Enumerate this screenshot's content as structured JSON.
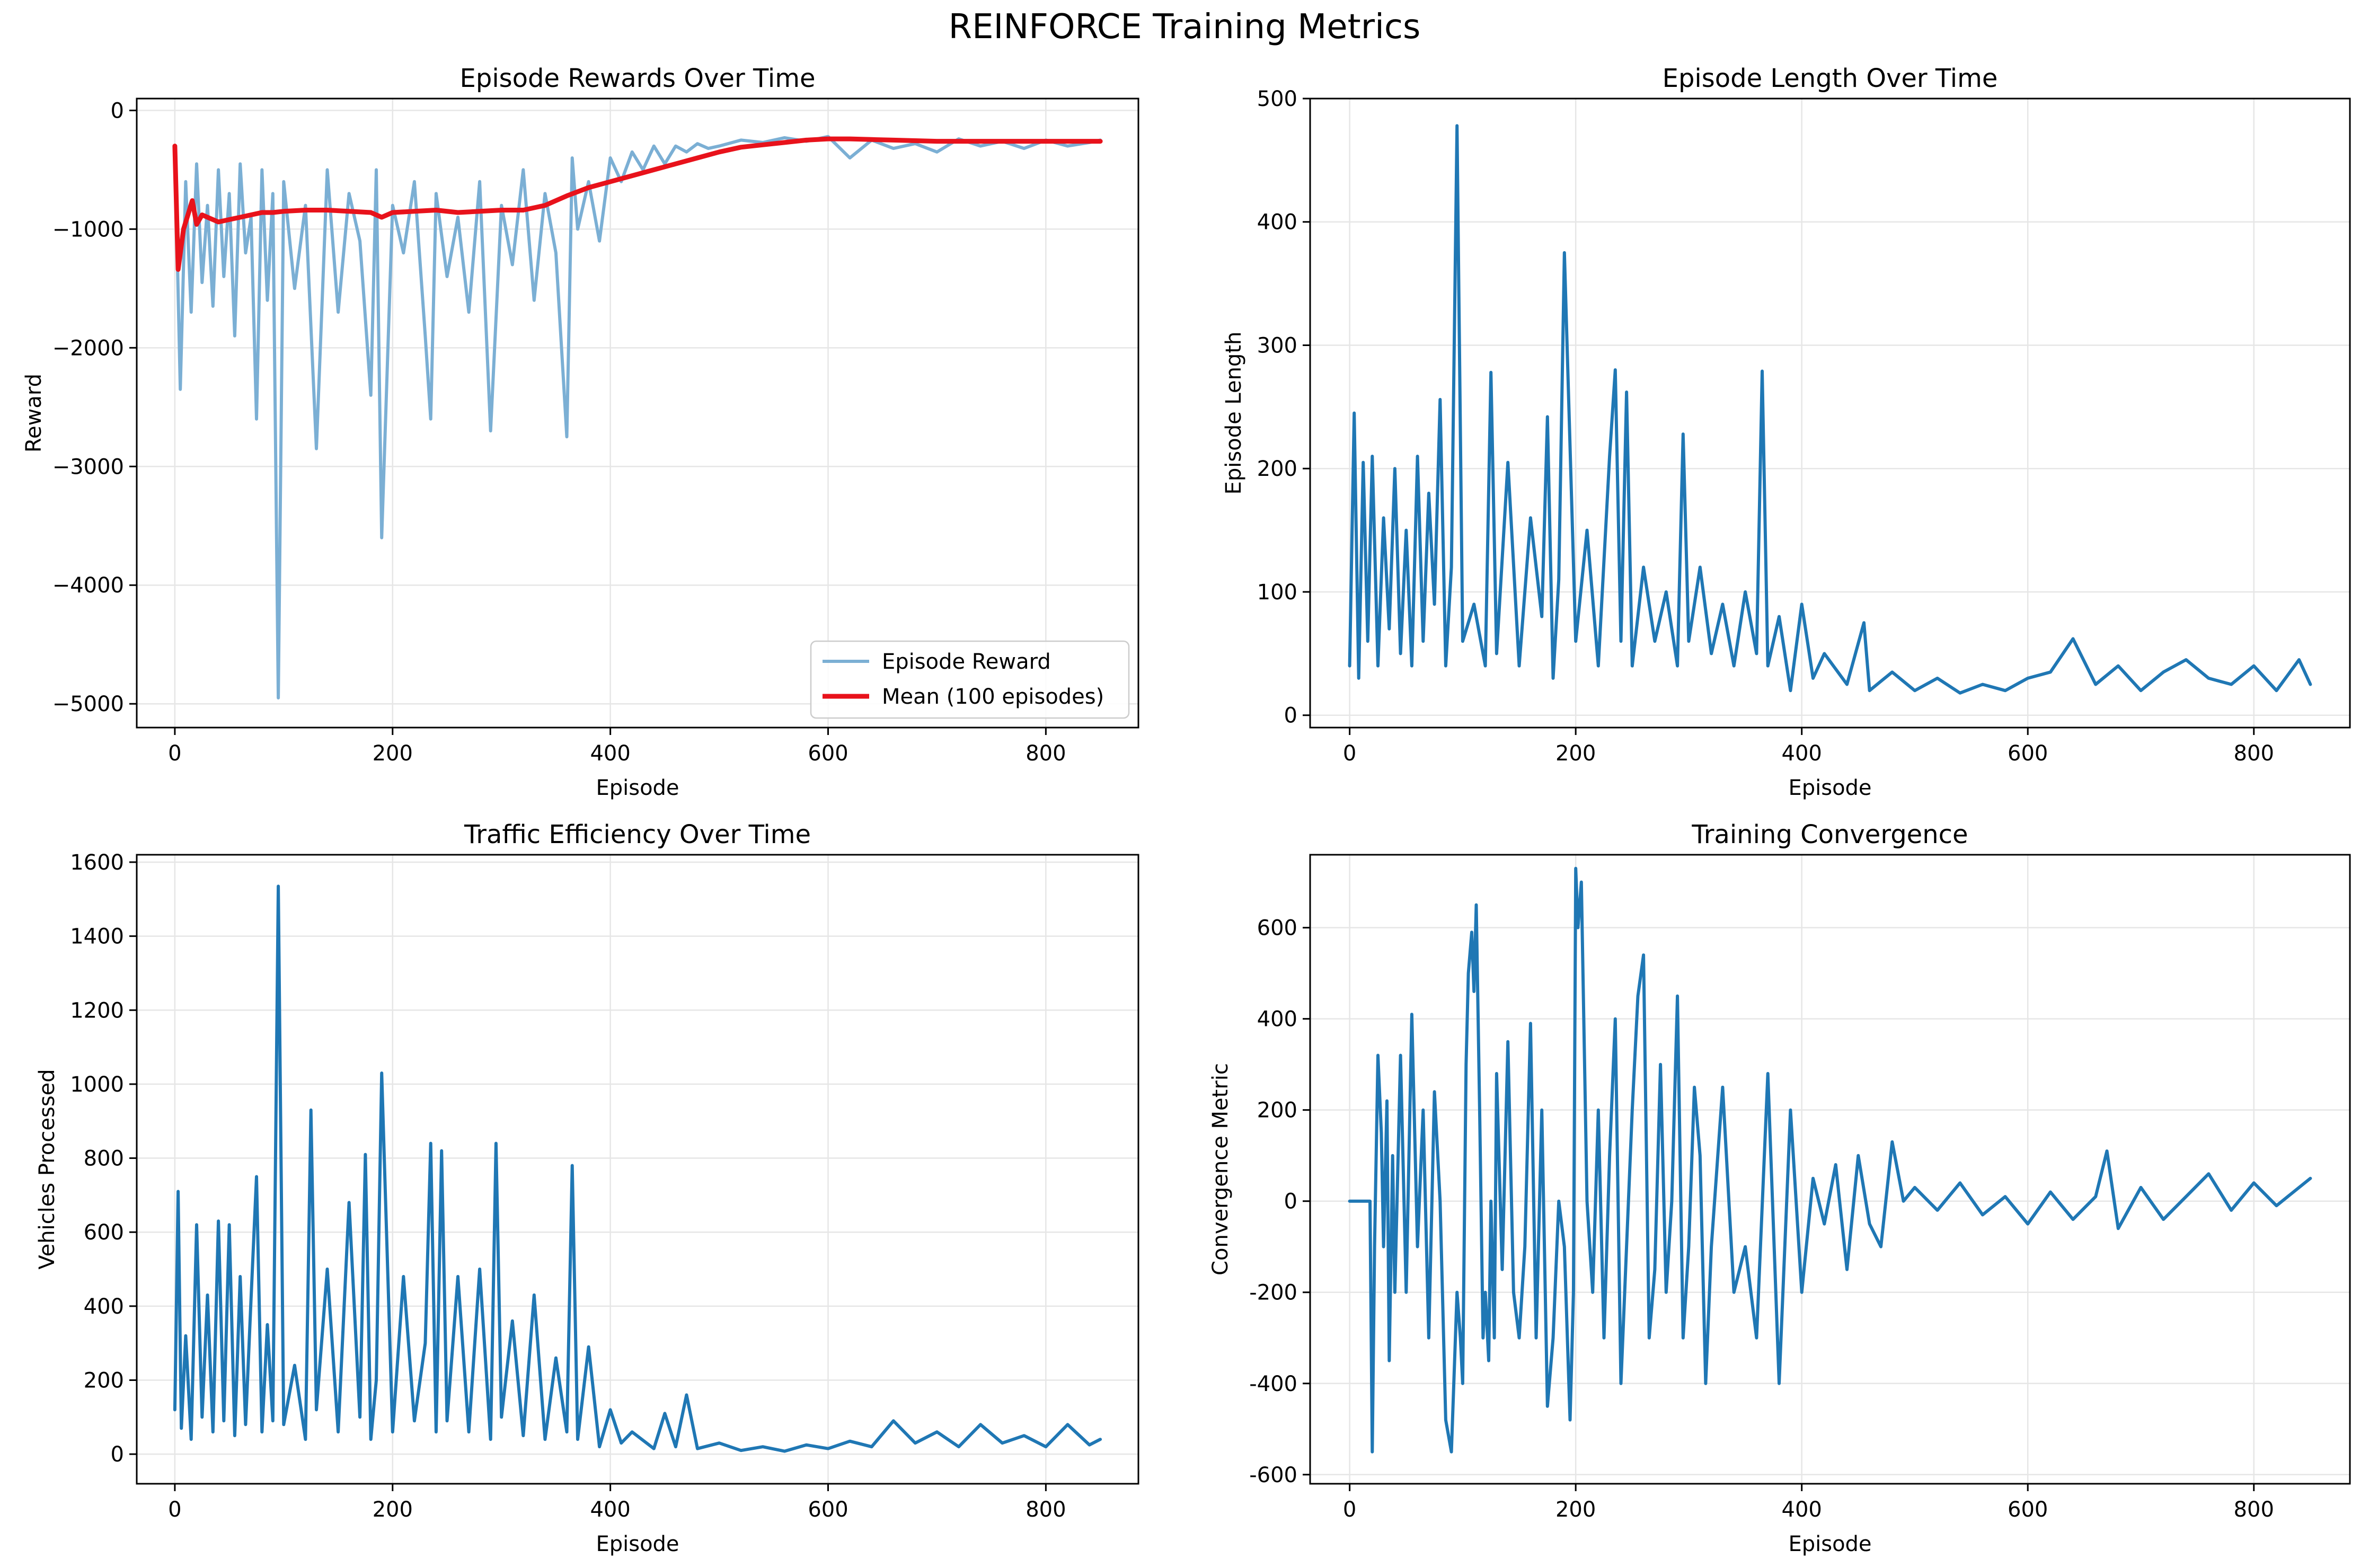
{
  "figure": {
    "suptitle": "REINFORCE Training Metrics"
  },
  "colors": {
    "blue": "#1f77b4",
    "light_blue": "#7bafd4",
    "red": "#e8121b",
    "grid": "#e6e6e6"
  },
  "chart_data": [
    {
      "type": "line",
      "title": "Episode Rewards Over Time",
      "xlabel": "Episode",
      "ylabel": "Reward",
      "xlim": [
        -35,
        885
      ],
      "ylim": [
        -5200,
        100
      ],
      "xticks": [
        0,
        200,
        400,
        600,
        800
      ],
      "yticks": [
        -5000,
        -4000,
        -3000,
        -2000,
        -1000,
        0
      ],
      "ytick_labels": [
        "−5000",
        "−4000",
        "−3000",
        "−2000",
        "−1000",
        "0"
      ],
      "grid": true,
      "legend": "lower-right",
      "series": [
        {
          "name": "Episode Reward",
          "color": "#7bafd4",
          "width": 6,
          "x": [
            0,
            5,
            10,
            15,
            20,
            25,
            30,
            35,
            40,
            45,
            50,
            55,
            60,
            65,
            70,
            75,
            80,
            85,
            90,
            95,
            100,
            110,
            120,
            130,
            140,
            150,
            160,
            170,
            180,
            185,
            190,
            200,
            210,
            220,
            230,
            235,
            240,
            250,
            260,
            270,
            280,
            290,
            300,
            310,
            320,
            330,
            340,
            350,
            360,
            365,
            370,
            380,
            390,
            400,
            410,
            420,
            430,
            440,
            450,
            460,
            470,
            480,
            490,
            500,
            520,
            540,
            560,
            580,
            600,
            620,
            640,
            660,
            680,
            700,
            720,
            740,
            760,
            780,
            800,
            820,
            840,
            850
          ],
          "y": [
            -300,
            -2350,
            -600,
            -1700,
            -450,
            -1450,
            -800,
            -1650,
            -500,
            -1400,
            -700,
            -1900,
            -450,
            -1200,
            -900,
            -2600,
            -500,
            -1600,
            -700,
            -4950,
            -600,
            -1500,
            -800,
            -2850,
            -500,
            -1700,
            -700,
            -1100,
            -2400,
            -500,
            -3600,
            -800,
            -1200,
            -600,
            -1900,
            -2600,
            -700,
            -1400,
            -900,
            -1700,
            -600,
            -2700,
            -800,
            -1300,
            -500,
            -1600,
            -700,
            -1200,
            -2750,
            -400,
            -1000,
            -600,
            -1100,
            -400,
            -600,
            -350,
            -500,
            -300,
            -450,
            -300,
            -350,
            -280,
            -320,
            -300,
            -250,
            -270,
            -230,
            -260,
            -220,
            -400,
            -250,
            -320,
            -280,
            -350,
            -240,
            -300,
            -260,
            -320,
            -250,
            -300,
            -270,
            -250
          ]
        },
        {
          "name": "Mean (100 episodes)",
          "color": "#e8121b",
          "width": 9,
          "x": [
            0,
            3,
            8,
            12,
            16,
            20,
            25,
            30,
            40,
            50,
            60,
            70,
            80,
            90,
            100,
            120,
            140,
            160,
            180,
            190,
            200,
            220,
            240,
            260,
            280,
            300,
            320,
            340,
            360,
            380,
            400,
            420,
            440,
            460,
            480,
            500,
            520,
            540,
            560,
            580,
            600,
            620,
            640,
            660,
            680,
            700,
            750,
            800,
            850
          ],
          "y": [
            -300,
            -1340,
            -1000,
            -880,
            -760,
            -960,
            -880,
            -900,
            -940,
            -920,
            -900,
            -880,
            -860,
            -860,
            -850,
            -840,
            -840,
            -850,
            -860,
            -900,
            -860,
            -850,
            -840,
            -860,
            -850,
            -840,
            -840,
            -800,
            -720,
            -650,
            -600,
            -550,
            -500,
            -450,
            -400,
            -350,
            -310,
            -290,
            -270,
            -250,
            -240,
            -240,
            -245,
            -250,
            -255,
            -260,
            -260,
            -260,
            -260
          ]
        }
      ]
    },
    {
      "type": "line",
      "title": "Episode Length Over Time",
      "xlabel": "Episode",
      "ylabel": "Episode Length",
      "xlim": [
        -35,
        885
      ],
      "ylim": [
        -10,
        500
      ],
      "xticks": [
        0,
        200,
        400,
        600,
        800
      ],
      "yticks": [
        0,
        100,
        200,
        300,
        400,
        500
      ],
      "grid": true,
      "series": [
        {
          "color": "#1f77b4",
          "width": 6,
          "x": [
            0,
            4,
            8,
            12,
            16,
            20,
            25,
            30,
            35,
            40,
            45,
            50,
            55,
            60,
            65,
            70,
            75,
            80,
            85,
            90,
            95,
            100,
            110,
            120,
            125,
            130,
            140,
            150,
            160,
            170,
            175,
            180,
            185,
            190,
            200,
            210,
            220,
            230,
            235,
            240,
            245,
            250,
            260,
            270,
            280,
            290,
            295,
            300,
            310,
            320,
            330,
            340,
            350,
            360,
            365,
            370,
            380,
            390,
            400,
            410,
            420,
            440,
            455,
            460,
            480,
            500,
            520,
            540,
            560,
            580,
            600,
            620,
            640,
            660,
            680,
            700,
            720,
            740,
            760,
            780,
            800,
            820,
            840,
            850
          ],
          "y": [
            40,
            245,
            30,
            205,
            60,
            210,
            40,
            160,
            70,
            200,
            50,
            150,
            40,
            210,
            60,
            180,
            90,
            256,
            40,
            120,
            478,
            60,
            90,
            40,
            278,
            50,
            205,
            40,
            160,
            80,
            242,
            30,
            110,
            375,
            60,
            150,
            40,
            210,
            280,
            60,
            262,
            40,
            120,
            60,
            100,
            40,
            228,
            60,
            120,
            50,
            90,
            40,
            100,
            50,
            279,
            40,
            80,
            20,
            90,
            30,
            50,
            25,
            75,
            20,
            35,
            20,
            30,
            18,
            25,
            20,
            30,
            35,
            62,
            25,
            40,
            20,
            35,
            45,
            30,
            25,
            40,
            20,
            45,
            25
          ]
        }
      ]
    },
    {
      "type": "line",
      "title": "Traffic Efficiency Over Time",
      "xlabel": "Episode",
      "ylabel": "Vehicles Processed",
      "xlim": [
        -35,
        885
      ],
      "ylim": [
        -80,
        1620
      ],
      "xticks": [
        0,
        200,
        400,
        600,
        800
      ],
      "yticks": [
        0,
        200,
        400,
        600,
        800,
        1000,
        1200,
        1400,
        1600
      ],
      "grid": true,
      "series": [
        {
          "color": "#1f77b4",
          "width": 6,
          "x": [
            0,
            3,
            6,
            10,
            15,
            20,
            25,
            30,
            35,
            40,
            45,
            50,
            55,
            60,
            65,
            70,
            75,
            80,
            85,
            90,
            95,
            100,
            110,
            120,
            125,
            130,
            140,
            150,
            160,
            170,
            175,
            180,
            185,
            190,
            200,
            210,
            220,
            230,
            235,
            240,
            245,
            250,
            260,
            270,
            280,
            290,
            295,
            300,
            310,
            320,
            330,
            340,
            350,
            360,
            365,
            370,
            380,
            390,
            400,
            410,
            420,
            440,
            450,
            460,
            470,
            480,
            500,
            520,
            540,
            560,
            580,
            600,
            620,
            640,
            660,
            680,
            700,
            720,
            740,
            760,
            780,
            800,
            820,
            840,
            850
          ],
          "y": [
            120,
            710,
            70,
            320,
            40,
            620,
            100,
            430,
            60,
            630,
            90,
            620,
            50,
            480,
            80,
            420,
            750,
            60,
            350,
            90,
            1535,
            80,
            240,
            40,
            930,
            120,
            500,
            60,
            680,
            100,
            810,
            40,
            200,
            1030,
            60,
            480,
            90,
            300,
            840,
            60,
            820,
            90,
            480,
            60,
            500,
            40,
            840,
            100,
            360,
            50,
            430,
            40,
            260,
            60,
            780,
            40,
            290,
            20,
            120,
            30,
            60,
            15,
            110,
            20,
            160,
            15,
            30,
            10,
            20,
            8,
            25,
            15,
            35,
            20,
            90,
            30,
            60,
            20,
            80,
            30,
            50,
            20,
            80,
            25,
            40
          ]
        }
      ]
    },
    {
      "type": "line",
      "title": "Training Convergence",
      "xlabel": "Episode",
      "ylabel": "Convergence Metric",
      "xlim": [
        -35,
        885
      ],
      "ylim": [
        -620,
        760
      ],
      "xticks": [
        0,
        200,
        400,
        600,
        800
      ],
      "yticks": [
        -600,
        -400,
        -200,
        0,
        200,
        400,
        600
      ],
      "grid": true,
      "series": [
        {
          "color": "#1f77b4",
          "width": 6,
          "x": [
            0,
            10,
            15,
            18,
            20,
            22,
            25,
            28,
            30,
            33,
            35,
            38,
            40,
            45,
            50,
            55,
            60,
            65,
            70,
            75,
            80,
            85,
            90,
            95,
            98,
            100,
            103,
            105,
            108,
            110,
            112,
            115,
            118,
            120,
            123,
            125,
            128,
            130,
            135,
            140,
            145,
            150,
            155,
            160,
            165,
            170,
            175,
            180,
            185,
            190,
            195,
            198,
            200,
            202,
            205,
            210,
            215,
            220,
            225,
            230,
            235,
            240,
            245,
            250,
            255,
            260,
            265,
            270,
            275,
            280,
            285,
            290,
            295,
            300,
            305,
            310,
            315,
            320,
            330,
            340,
            350,
            360,
            370,
            380,
            390,
            400,
            410,
            420,
            430,
            440,
            450,
            460,
            470,
            480,
            490,
            500,
            520,
            540,
            560,
            580,
            600,
            620,
            640,
            660,
            670,
            680,
            700,
            720,
            740,
            760,
            780,
            800,
            820,
            840,
            850
          ],
          "y": [
            0,
            0,
            0,
            0,
            -550,
            -100,
            320,
            150,
            -100,
            220,
            -350,
            100,
            -200,
            320,
            -200,
            410,
            -100,
            200,
            -300,
            240,
            0,
            -480,
            -550,
            -200,
            -300,
            -400,
            300,
            500,
            590,
            460,
            650,
            200,
            -300,
            -200,
            -350,
            0,
            -300,
            280,
            -150,
            350,
            -200,
            -300,
            -100,
            390,
            -300,
            200,
            -450,
            -300,
            0,
            -100,
            -480,
            -200,
            730,
            600,
            700,
            0,
            -200,
            200,
            -300,
            100,
            400,
            -400,
            -100,
            200,
            450,
            540,
            -300,
            -150,
            300,
            -200,
            0,
            450,
            -300,
            -100,
            250,
            100,
            -400,
            -100,
            250,
            -200,
            -100,
            -300,
            280,
            -400,
            200,
            -200,
            50,
            -50,
            80,
            -150,
            100,
            -50,
            -100,
            130,
            0,
            30,
            -20,
            40,
            -30,
            10,
            -50,
            20,
            -40,
            10,
            110,
            -60,
            30,
            -40,
            10,
            60,
            -20,
            40,
            -10,
            30,
            50
          ]
        }
      ]
    }
  ]
}
